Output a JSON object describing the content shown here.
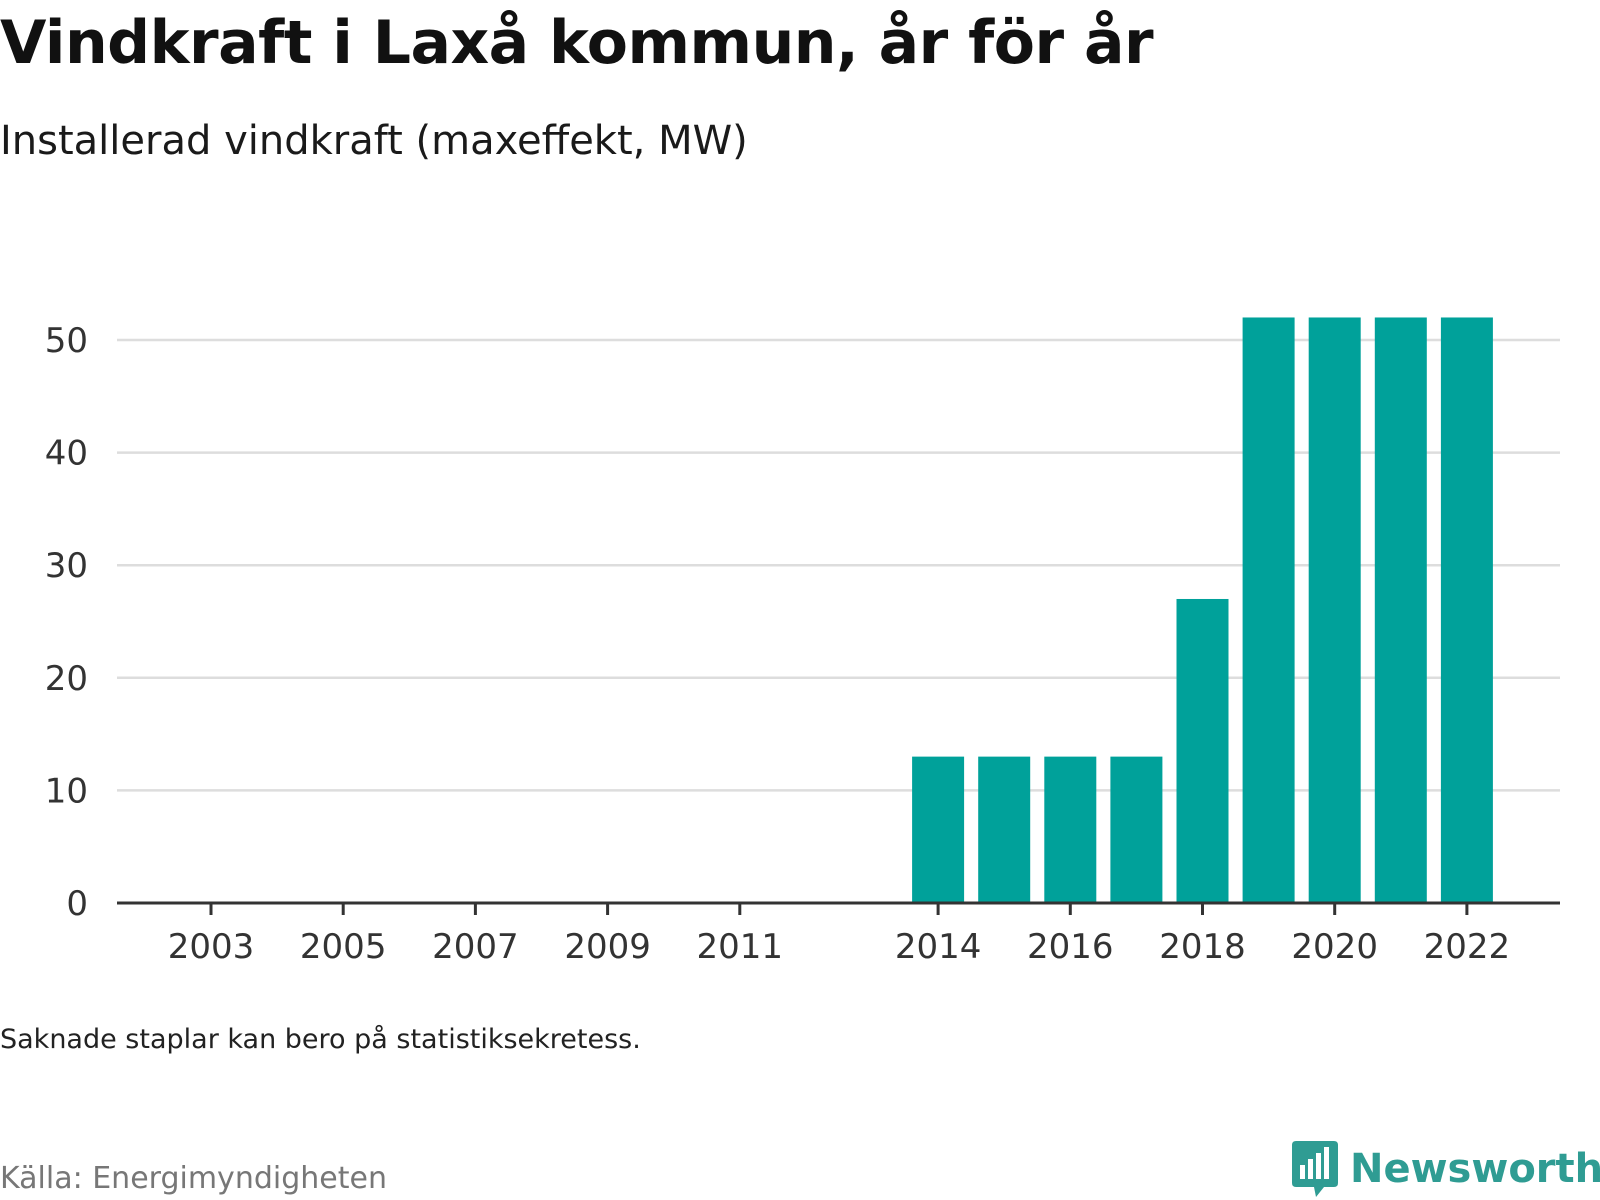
{
  "header": {
    "title": "Vindkraft i Laxå kommun, år för år",
    "subtitle": "Installerad vindkraft (maxeffekt, MW)"
  },
  "footer": {
    "note": "Saknade staplar kan bero på statistiksekretess.",
    "source": "Källa: Energimyndigheten",
    "brand": "Newsworthy"
  },
  "colors": {
    "bar": "#00a19a",
    "grid": "#dddddd",
    "axis": "#333333",
    "brand": "#2f9c93",
    "source_text": "#777777"
  },
  "icons": {
    "brand_logo": "bar-chart-speech-bubble-icon"
  },
  "chart_data": {
    "type": "bar",
    "title": "Vindkraft i Laxå kommun, år för år",
    "subtitle": "Installerad vindkraft (maxeffekt, MW)",
    "xlabel": "",
    "ylabel": "",
    "x_range": [
      2002,
      2023
    ],
    "ylim": [
      0,
      55
    ],
    "y_ticks": [
      0,
      10,
      20,
      30,
      40,
      50
    ],
    "x_ticks": [
      2003,
      2005,
      2007,
      2009,
      2011,
      2014,
      2016,
      2018,
      2020,
      2022
    ],
    "grid": true,
    "legend": "none",
    "categories": [
      2014,
      2015,
      2016,
      2017,
      2018,
      2019,
      2020,
      2021,
      2022
    ],
    "values": [
      13,
      13,
      13,
      13,
      27,
      52,
      52,
      52,
      52
    ]
  }
}
